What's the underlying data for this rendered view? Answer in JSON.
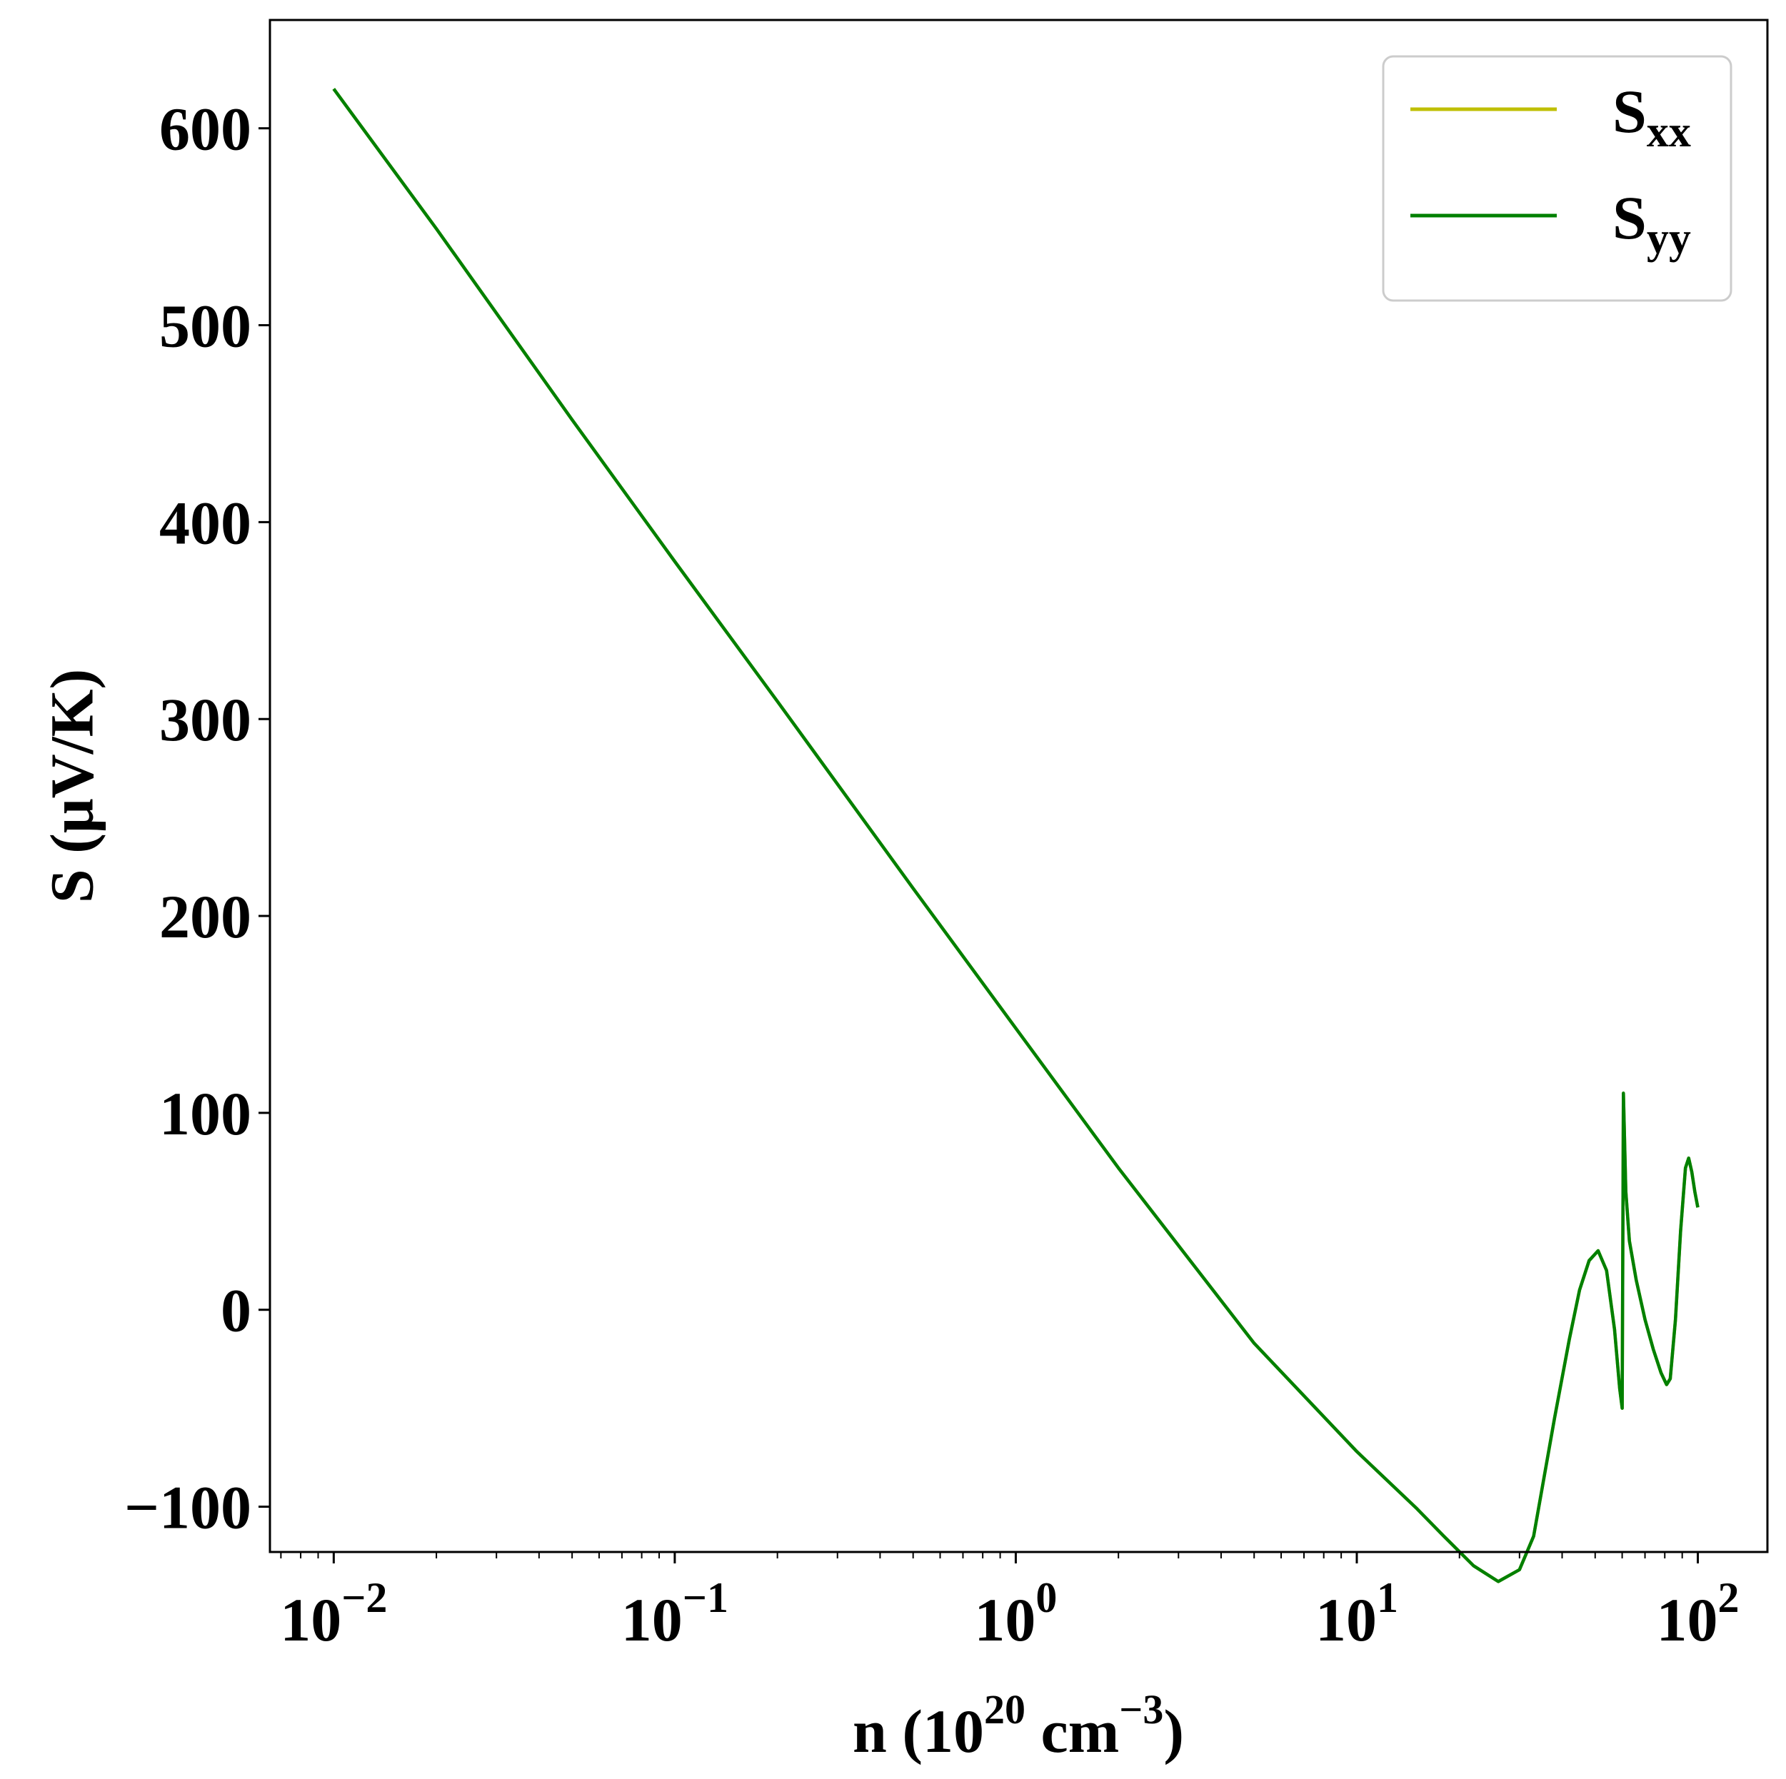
{
  "chart_data": {
    "type": "line",
    "title": "",
    "xlabel": {
      "prefix": "n (10",
      "sup1": "20",
      "mid": " cm",
      "sup2": "−3",
      "suffix": ")"
    },
    "ylabel": "S (μV/K)",
    "xscale": "log",
    "xlim": [
      0.0065,
      160
    ],
    "ylim": [
      -123,
      655
    ],
    "grid": false,
    "legend_position": "top-right",
    "x_ticks": [
      {
        "value": 0.01,
        "base": "10",
        "exp": "−2"
      },
      {
        "value": 0.1,
        "base": "10",
        "exp": "−1"
      },
      {
        "value": 1,
        "base": "10",
        "exp": "0"
      },
      {
        "value": 10,
        "base": "10",
        "exp": "1"
      },
      {
        "value": 100,
        "base": "10",
        "exp": "2"
      }
    ],
    "y_ticks": [
      {
        "value": 600,
        "label": "600"
      },
      {
        "value": 500,
        "label": "500"
      },
      {
        "value": 400,
        "label": "400"
      },
      {
        "value": 300,
        "label": "300"
      },
      {
        "value": 200,
        "label": "200"
      },
      {
        "value": 100,
        "label": "100"
      },
      {
        "value": 0,
        "label": "0"
      },
      {
        "value": -100,
        "label": "−100"
      }
    ],
    "series": [
      {
        "name": {
          "base": "S",
          "sub": "xx"
        },
        "color": "#bfbf00",
        "x": [
          0.01,
          0.02,
          0.05,
          0.1,
          0.2,
          0.5,
          1,
          2,
          5,
          10,
          12,
          15,
          18,
          22,
          26,
          30,
          33,
          35,
          38,
          42,
          45,
          48,
          51,
          54,
          57,
          59,
          60,
          60.5,
          61.5,
          63,
          66,
          70,
          74,
          78,
          81,
          83,
          86,
          89,
          92,
          94,
          96,
          98,
          100
        ],
        "y": [
          620,
          549,
          452,
          380,
          309,
          214,
          143,
          72,
          -17,
          -72,
          -85,
          -101,
          -115,
          -130,
          -138,
          -132,
          -115,
          -90,
          -55,
          -15,
          10,
          25,
          30,
          20,
          -10,
          -40,
          -50,
          110,
          60,
          35,
          15,
          -5,
          -20,
          -32,
          -38,
          -35,
          -5,
          40,
          72,
          77,
          70,
          60,
          52
        ]
      },
      {
        "name": {
          "base": "S",
          "sub": "yy"
        },
        "color": "#008000",
        "x": [
          0.01,
          0.02,
          0.05,
          0.1,
          0.2,
          0.5,
          1,
          2,
          5,
          10,
          12,
          15,
          18,
          22,
          26,
          30,
          33,
          35,
          38,
          42,
          45,
          48,
          51,
          54,
          57,
          59,
          60,
          60.5,
          61.5,
          63,
          66,
          70,
          74,
          78,
          81,
          83,
          86,
          89,
          92,
          94,
          96,
          98,
          100
        ],
        "y": [
          620,
          549,
          452,
          380,
          309,
          214,
          143,
          72,
          -17,
          -72,
          -85,
          -101,
          -115,
          -130,
          -138,
          -132,
          -115,
          -90,
          -55,
          -15,
          10,
          25,
          30,
          20,
          -10,
          -40,
          -50,
          110,
          60,
          35,
          15,
          -5,
          -20,
          -32,
          -38,
          -35,
          -5,
          40,
          72,
          77,
          70,
          60,
          52
        ]
      }
    ]
  }
}
